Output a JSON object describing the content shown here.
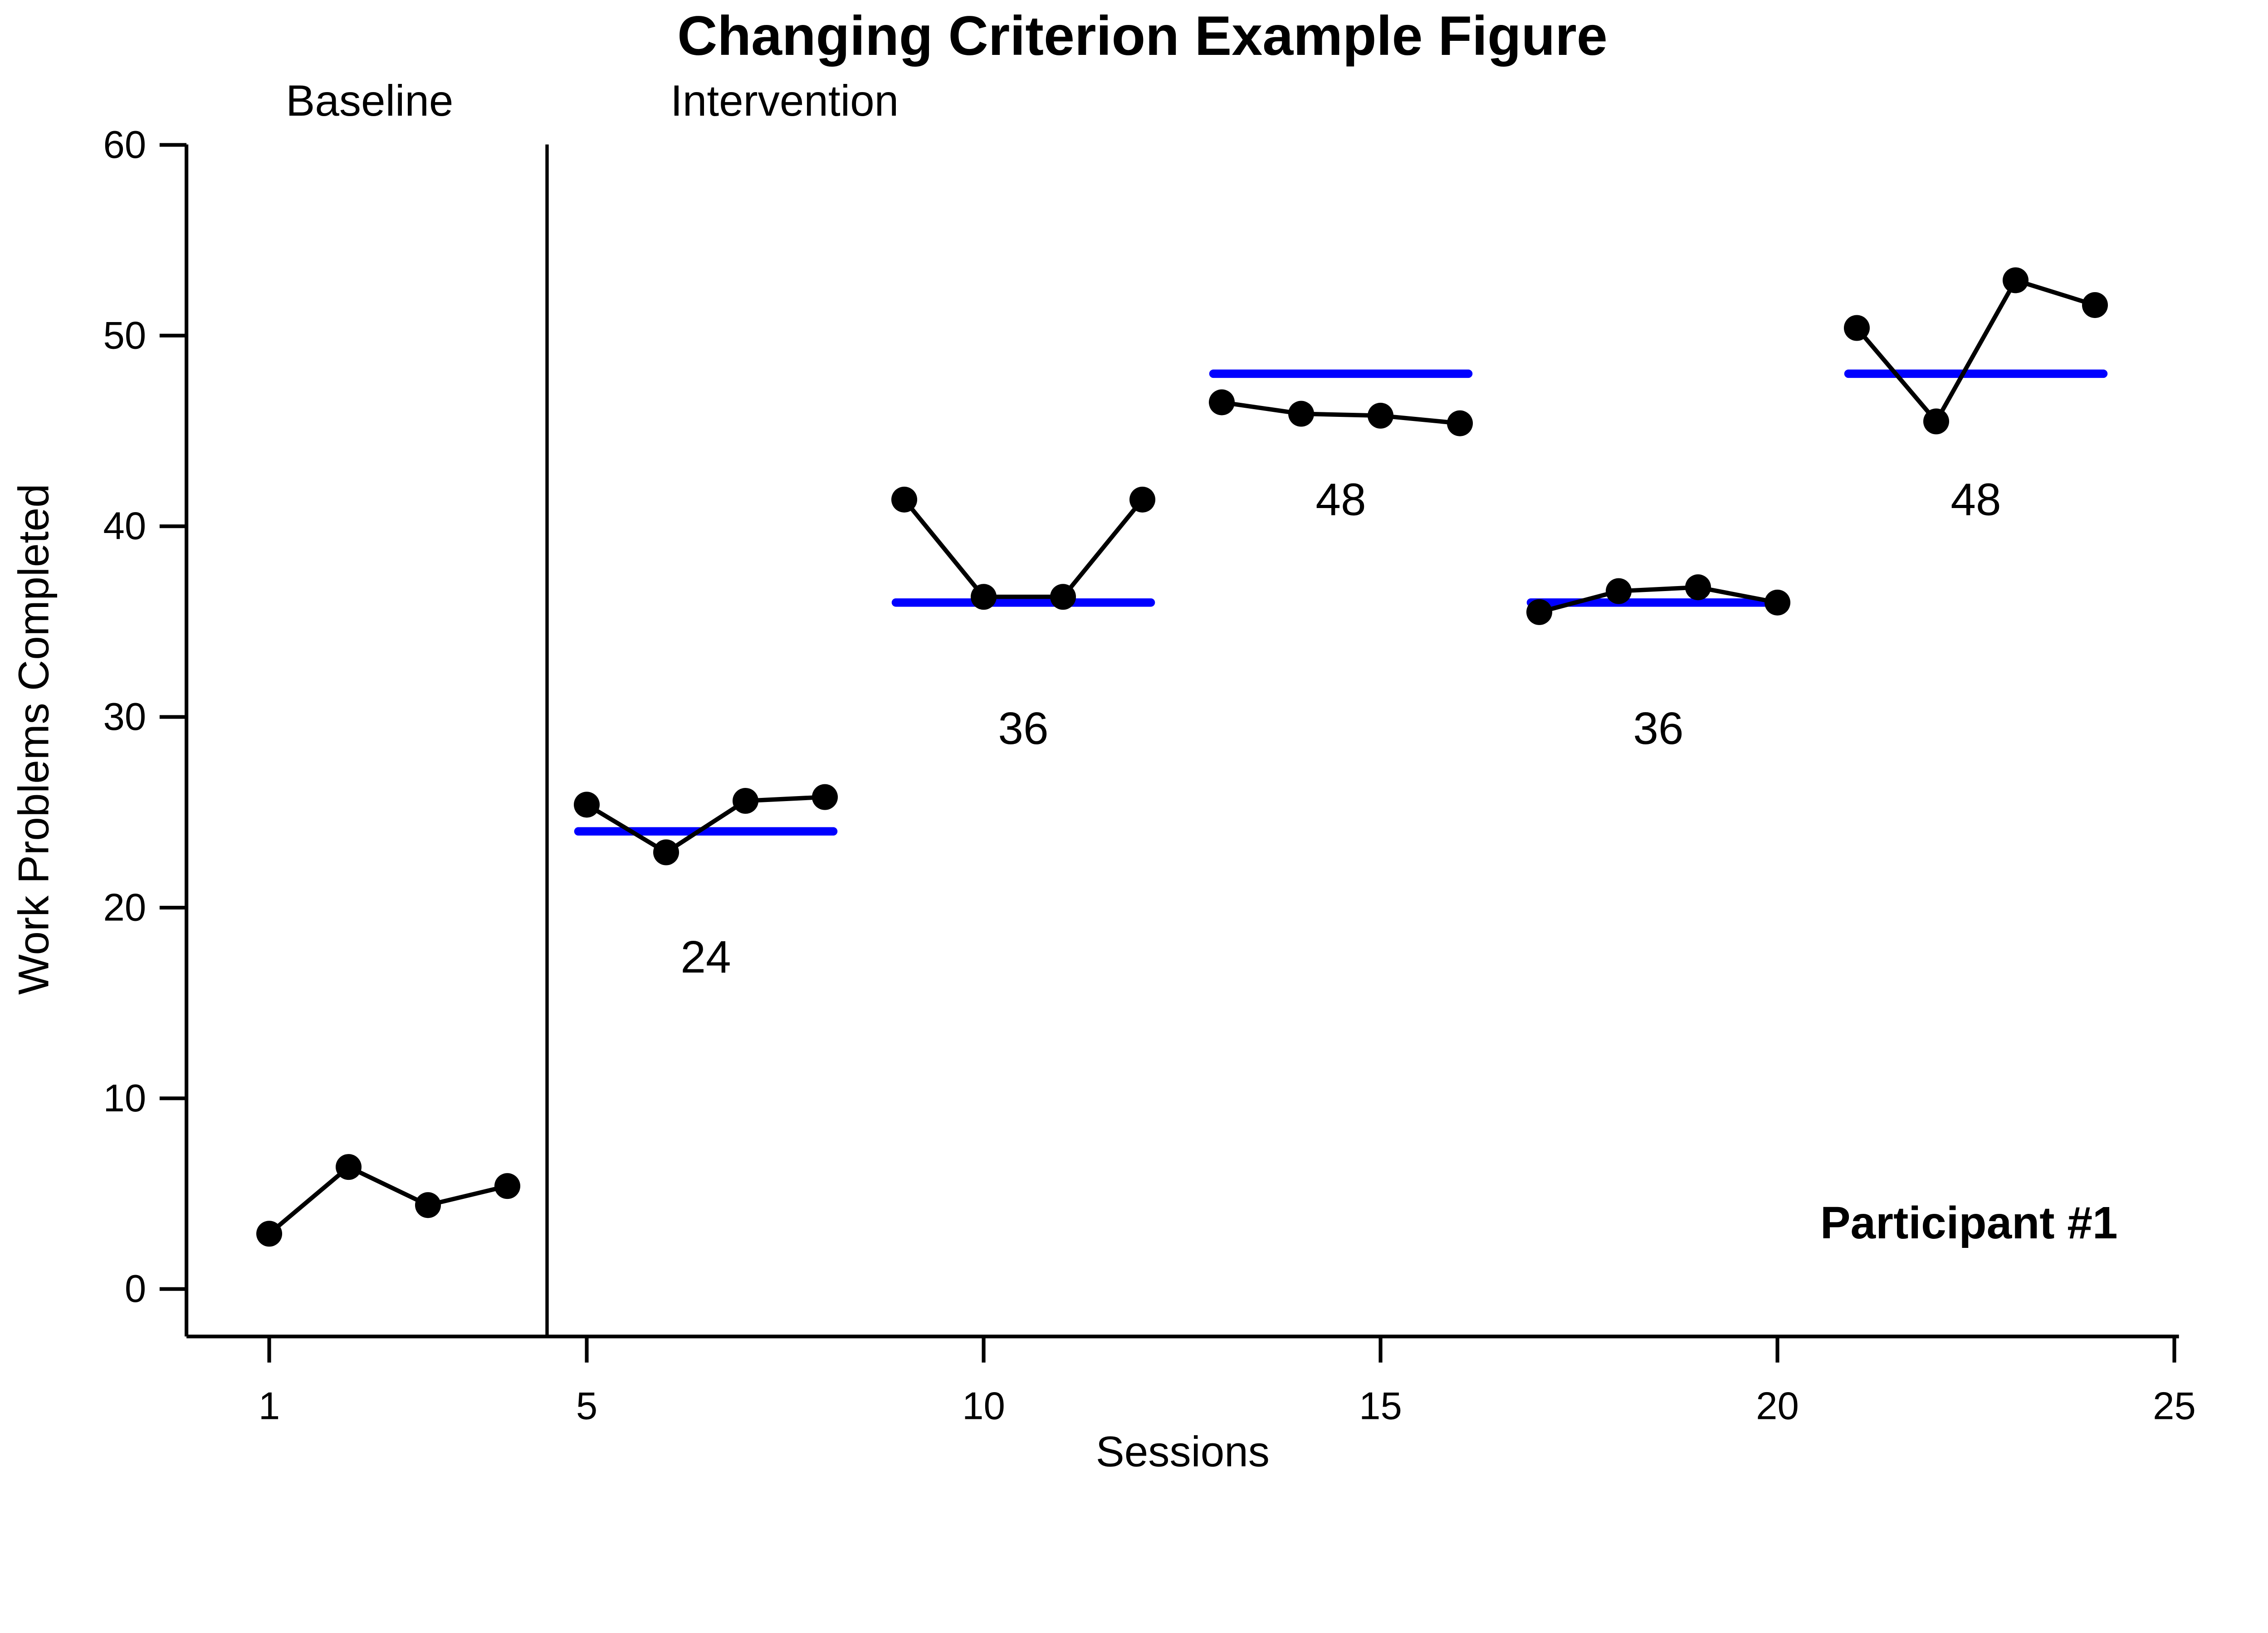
{
  "title": "Changing Criterion Example Figure",
  "phase_labels": {
    "baseline": "Baseline",
    "intervention": "Intervention"
  },
  "annotation": "Participant #1",
  "chart_data": {
    "type": "line",
    "title": "Changing Criterion Example Figure",
    "xlabel": "Sessions",
    "ylabel": "Work Problems Completed",
    "xlim": [
      0,
      25.5
    ],
    "ylim": [
      -2.5,
      62
    ],
    "x_ticks": [
      1,
      5,
      10,
      15,
      20,
      25
    ],
    "y_ticks": [
      0,
      10,
      20,
      30,
      40,
      50,
      60
    ],
    "grid": false,
    "legend": "none",
    "series": [
      {
        "name": "Work problems completed",
        "x": [
          1,
          2,
          3,
          4,
          5,
          6,
          7,
          8,
          9,
          10,
          11,
          12,
          13,
          14,
          15,
          16,
          17,
          18,
          19,
          20,
          21,
          22,
          23,
          24
        ],
        "y": [
          2.9,
          6.4,
          4.4,
          5.4,
          25.4,
          22.9,
          25.6,
          25.8,
          41.4,
          36.3,
          36.3,
          41.4,
          46.5,
          45.9,
          45.8,
          45.4,
          35.5,
          36.6,
          36.8,
          36.0,
          50.4,
          45.5,
          52.9,
          51.6
        ]
      }
    ],
    "phase_change_x": 4.5,
    "phases": [
      {
        "label": "Baseline",
        "sessions_from": 1,
        "sessions_to": 4
      },
      {
        "label": "Intervention",
        "sessions_from": 5,
        "sessions_to": 24
      }
    ],
    "criteria": [
      {
        "value": 24,
        "from": 5,
        "to": 8,
        "label": "24"
      },
      {
        "value": 36,
        "from": 9,
        "to": 12,
        "label": "36"
      },
      {
        "value": 48,
        "from": 13,
        "to": 16,
        "label": "48"
      },
      {
        "value": 36,
        "from": 17,
        "to": 20,
        "label": "36"
      },
      {
        "value": 48,
        "from": 21,
        "to": 24,
        "label": "48"
      }
    ],
    "annotation": "Participant #1",
    "colors": {
      "data": "#000000",
      "criterion": "#0000ff",
      "background": "#ffffff"
    }
  }
}
